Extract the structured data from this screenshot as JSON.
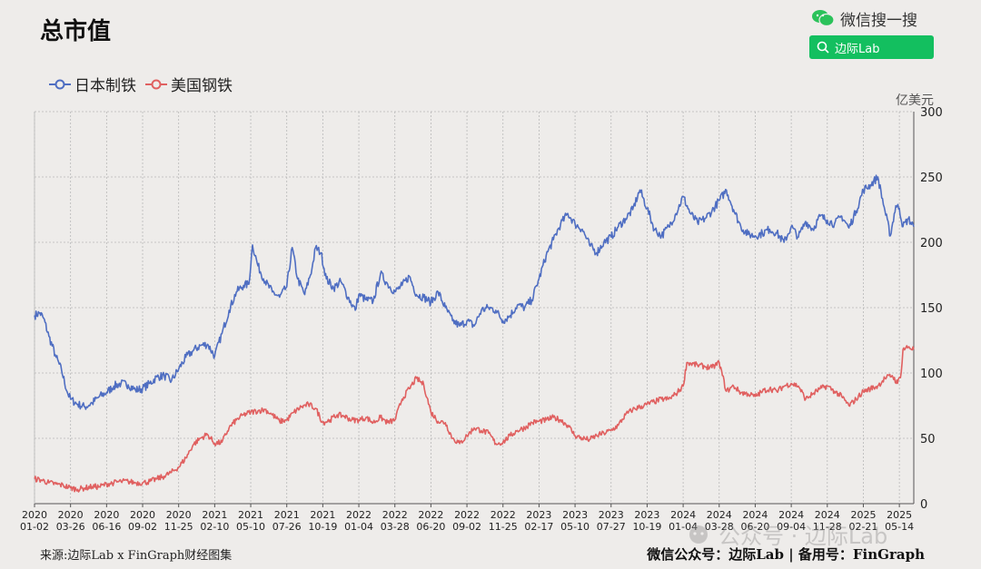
{
  "header": {
    "title": "总市值",
    "wechat_search_label": "微信搜一搜",
    "search_button_label": "边际Lab"
  },
  "unit_label": "亿美元",
  "footer": {
    "source": "来源:边际Lab x FinGraph财经图集",
    "account": "微信公众号：边际Lab  |  备用号：FinGraph"
  },
  "watermark": {
    "text": "公众号 · 边际Lab",
    "icon": "wechat-official-account-icon"
  },
  "colors": {
    "nippon": "#4f6ec2",
    "us_steel": "#e06060",
    "search_green": "#13bf5f",
    "wechat_green": "#2bc25a"
  },
  "chart_data": {
    "type": "line",
    "title": "总市值",
    "ylabel": "亿美元",
    "ylim": [
      0,
      300
    ],
    "yticks": [
      0,
      50,
      100,
      150,
      200,
      250,
      300
    ],
    "grid": true,
    "legend_position": "top-left",
    "x_ticks": [
      {
        "year": "2020",
        "md": "01-02"
      },
      {
        "year": "2020",
        "md": "03-26"
      },
      {
        "year": "2020",
        "md": "06-16"
      },
      {
        "year": "2020",
        "md": "09-02"
      },
      {
        "year": "2020",
        "md": "11-25"
      },
      {
        "year": "2021",
        "md": "02-10"
      },
      {
        "year": "2021",
        "md": "05-10"
      },
      {
        "year": "2021",
        "md": "07-26"
      },
      {
        "year": "2021",
        "md": "10-19"
      },
      {
        "year": "2022",
        "md": "01-04"
      },
      {
        "year": "2022",
        "md": "03-28"
      },
      {
        "year": "2022",
        "md": "06-20"
      },
      {
        "year": "2022",
        "md": "09-02"
      },
      {
        "year": "2022",
        "md": "11-25"
      },
      {
        "year": "2023",
        "md": "02-17"
      },
      {
        "year": "2023",
        "md": "05-10"
      },
      {
        "year": "2023",
        "md": "07-27"
      },
      {
        "year": "2023",
        "md": "10-19"
      },
      {
        "year": "2024",
        "md": "01-04"
      },
      {
        "year": "2024",
        "md": "03-28"
      },
      {
        "year": "2024",
        "md": "06-20"
      },
      {
        "year": "2024",
        "md": "09-04"
      },
      {
        "year": "2024",
        "md": "11-28"
      },
      {
        "year": "2025",
        "md": "02-21"
      },
      {
        "year": "2025",
        "md": "05-14"
      }
    ],
    "x_max": 24.4,
    "series": [
      {
        "name": "日本制铁",
        "color": "#4f6ec2",
        "points": [
          [
            0,
            144
          ],
          [
            0.15,
            146
          ],
          [
            0.25,
            142
          ],
          [
            0.4,
            128
          ],
          [
            0.6,
            112
          ],
          [
            0.75,
            102
          ],
          [
            0.9,
            86
          ],
          [
            1.0,
            80
          ],
          [
            1.2,
            76
          ],
          [
            1.4,
            74
          ],
          [
            1.6,
            77
          ],
          [
            1.8,
            82
          ],
          [
            2.0,
            85
          ],
          [
            2.2,
            90
          ],
          [
            2.4,
            92
          ],
          [
            2.6,
            91
          ],
          [
            2.8,
            87
          ],
          [
            3.0,
            88
          ],
          [
            3.2,
            92
          ],
          [
            3.4,
            97
          ],
          [
            3.6,
            98
          ],
          [
            3.8,
            94
          ],
          [
            4.0,
            103
          ],
          [
            4.2,
            112
          ],
          [
            4.4,
            117
          ],
          [
            4.6,
            121
          ],
          [
            4.8,
            122
          ],
          [
            5.0,
            113
          ],
          [
            5.2,
            130
          ],
          [
            5.4,
            148
          ],
          [
            5.6,
            162
          ],
          [
            5.8,
            167
          ],
          [
            5.95,
            168
          ],
          [
            6.05,
            198
          ],
          [
            6.2,
            182
          ],
          [
            6.4,
            170
          ],
          [
            6.6,
            162
          ],
          [
            6.8,
            158
          ],
          [
            7.0,
            166
          ],
          [
            7.15,
            196
          ],
          [
            7.3,
            172
          ],
          [
            7.5,
            160
          ],
          [
            7.7,
            180
          ],
          [
            7.8,
            196
          ],
          [
            7.95,
            192
          ],
          [
            8.1,
            172
          ],
          [
            8.3,
            165
          ],
          [
            8.5,
            170
          ],
          [
            8.7,
            158
          ],
          [
            8.9,
            148
          ],
          [
            9.0,
            160
          ],
          [
            9.2,
            156
          ],
          [
            9.4,
            155
          ],
          [
            9.6,
            176
          ],
          [
            9.8,
            168
          ],
          [
            10.0,
            162
          ],
          [
            10.2,
            167
          ],
          [
            10.4,
            174
          ],
          [
            10.6,
            160
          ],
          [
            10.8,
            158
          ],
          [
            11.0,
            154
          ],
          [
            11.2,
            162
          ],
          [
            11.4,
            150
          ],
          [
            11.6,
            140
          ],
          [
            11.8,
            136
          ],
          [
            12.0,
            140
          ],
          [
            12.2,
            136
          ],
          [
            12.4,
            148
          ],
          [
            12.6,
            150
          ],
          [
            12.8,
            148
          ],
          [
            13.0,
            140
          ],
          [
            13.2,
            144
          ],
          [
            13.4,
            152
          ],
          [
            13.6,
            150
          ],
          [
            13.8,
            156
          ],
          [
            14.0,
            172
          ],
          [
            14.2,
            190
          ],
          [
            14.4,
            202
          ],
          [
            14.6,
            214
          ],
          [
            14.8,
            222
          ],
          [
            15.0,
            214
          ],
          [
            15.2,
            210
          ],
          [
            15.4,
            198
          ],
          [
            15.6,
            192
          ],
          [
            15.8,
            200
          ],
          [
            16.0,
            204
          ],
          [
            16.2,
            212
          ],
          [
            16.4,
            218
          ],
          [
            16.6,
            225
          ],
          [
            16.8,
            240
          ],
          [
            17.0,
            226
          ],
          [
            17.2,
            210
          ],
          [
            17.4,
            205
          ],
          [
            17.6,
            212
          ],
          [
            17.8,
            222
          ],
          [
            18.0,
            235
          ],
          [
            18.2,
            222
          ],
          [
            18.4,
            215
          ],
          [
            18.6,
            218
          ],
          [
            18.8,
            224
          ],
          [
            19.0,
            232
          ],
          [
            19.2,
            240
          ],
          [
            19.4,
            225
          ],
          [
            19.6,
            212
          ],
          [
            19.8,
            206
          ],
          [
            20.0,
            205
          ],
          [
            20.2,
            207
          ],
          [
            20.4,
            210
          ],
          [
            20.6,
            207
          ],
          [
            20.8,
            200
          ],
          [
            21.0,
            212
          ],
          [
            21.2,
            204
          ],
          [
            21.4,
            216
          ],
          [
            21.6,
            210
          ],
          [
            21.8,
            220
          ],
          [
            22.0,
            217
          ],
          [
            22.2,
            214
          ],
          [
            22.4,
            220
          ],
          [
            22.6,
            211
          ],
          [
            22.8,
            224
          ],
          [
            23.0,
            240
          ],
          [
            23.2,
            244
          ],
          [
            23.4,
            250
          ],
          [
            23.6,
            224
          ],
          [
            23.75,
            205
          ],
          [
            23.9,
            228
          ],
          [
            24.0,
            226
          ],
          [
            24.1,
            212
          ],
          [
            24.25,
            218
          ],
          [
            24.4,
            212
          ]
        ]
      },
      {
        "name": "美国钢铁",
        "color": "#e06060",
        "points": [
          [
            0,
            19
          ],
          [
            0.2,
            18
          ],
          [
            0.4,
            16
          ],
          [
            0.6,
            15
          ],
          [
            0.8,
            14
          ],
          [
            1.0,
            12
          ],
          [
            1.2,
            11
          ],
          [
            1.4,
            12
          ],
          [
            1.6,
            13
          ],
          [
            1.8,
            13
          ],
          [
            2.0,
            15
          ],
          [
            2.2,
            16
          ],
          [
            2.4,
            17
          ],
          [
            2.6,
            17
          ],
          [
            2.8,
            16
          ],
          [
            3.0,
            16
          ],
          [
            3.2,
            17
          ],
          [
            3.4,
            19
          ],
          [
            3.6,
            21
          ],
          [
            3.8,
            24
          ],
          [
            4.0,
            28
          ],
          [
            4.2,
            35
          ],
          [
            4.4,
            45
          ],
          [
            4.6,
            50
          ],
          [
            4.8,
            53
          ],
          [
            5.0,
            46
          ],
          [
            5.2,
            47
          ],
          [
            5.4,
            58
          ],
          [
            5.6,
            64
          ],
          [
            5.8,
            68
          ],
          [
            6.0,
            70
          ],
          [
            6.2,
            71
          ],
          [
            6.4,
            72
          ],
          [
            6.6,
            68
          ],
          [
            6.8,
            63
          ],
          [
            7.0,
            64
          ],
          [
            7.2,
            70
          ],
          [
            7.4,
            74
          ],
          [
            7.6,
            76
          ],
          [
            7.8,
            73
          ],
          [
            8.0,
            62
          ],
          [
            8.2,
            64
          ],
          [
            8.4,
            68
          ],
          [
            8.6,
            67
          ],
          [
            8.8,
            64
          ],
          [
            9.0,
            64
          ],
          [
            9.2,
            66
          ],
          [
            9.4,
            62
          ],
          [
            9.6,
            66
          ],
          [
            9.8,
            62
          ],
          [
            10.0,
            64
          ],
          [
            10.2,
            80
          ],
          [
            10.4,
            88
          ],
          [
            10.6,
            96
          ],
          [
            10.8,
            91
          ],
          [
            11.0,
            70
          ],
          [
            11.2,
            63
          ],
          [
            11.4,
            62
          ],
          [
            11.6,
            50
          ],
          [
            11.8,
            46
          ],
          [
            12.0,
            52
          ],
          [
            12.2,
            58
          ],
          [
            12.4,
            56
          ],
          [
            12.6,
            54
          ],
          [
            12.8,
            46
          ],
          [
            13.0,
            47
          ],
          [
            13.2,
            52
          ],
          [
            13.4,
            56
          ],
          [
            13.6,
            58
          ],
          [
            13.8,
            62
          ],
          [
            14.0,
            63
          ],
          [
            14.2,
            64
          ],
          [
            14.4,
            66
          ],
          [
            14.6,
            64
          ],
          [
            14.8,
            60
          ],
          [
            15.0,
            52
          ],
          [
            15.2,
            50
          ],
          [
            15.4,
            49
          ],
          [
            15.6,
            52
          ],
          [
            15.8,
            54
          ],
          [
            16.0,
            56
          ],
          [
            16.2,
            60
          ],
          [
            16.4,
            68
          ],
          [
            16.6,
            72
          ],
          [
            16.8,
            74
          ],
          [
            17.0,
            76
          ],
          [
            17.2,
            78
          ],
          [
            17.4,
            80
          ],
          [
            17.6,
            80
          ],
          [
            17.8,
            84
          ],
          [
            18.0,
            90
          ],
          [
            18.1,
            108
          ],
          [
            18.4,
            106
          ],
          [
            18.6,
            105
          ],
          [
            18.8,
            104
          ],
          [
            19.0,
            108
          ],
          [
            19.2,
            86
          ],
          [
            19.4,
            90
          ],
          [
            19.6,
            85
          ],
          [
            19.8,
            84
          ],
          [
            20.0,
            82
          ],
          [
            20.2,
            86
          ],
          [
            20.4,
            88
          ],
          [
            20.6,
            86
          ],
          [
            20.8,
            90
          ],
          [
            21.0,
            92
          ],
          [
            21.2,
            90
          ],
          [
            21.4,
            80
          ],
          [
            21.6,
            84
          ],
          [
            21.8,
            88
          ],
          [
            22.0,
            90
          ],
          [
            22.2,
            86
          ],
          [
            22.4,
            82
          ],
          [
            22.6,
            75
          ],
          [
            22.8,
            80
          ],
          [
            23.0,
            86
          ],
          [
            23.2,
            88
          ],
          [
            23.4,
            90
          ],
          [
            23.6,
            96
          ],
          [
            23.8,
            98
          ],
          [
            23.95,
            92
          ],
          [
            24.05,
            100
          ],
          [
            24.1,
            118
          ],
          [
            24.25,
            120
          ],
          [
            24.4,
            118
          ]
        ]
      }
    ]
  }
}
